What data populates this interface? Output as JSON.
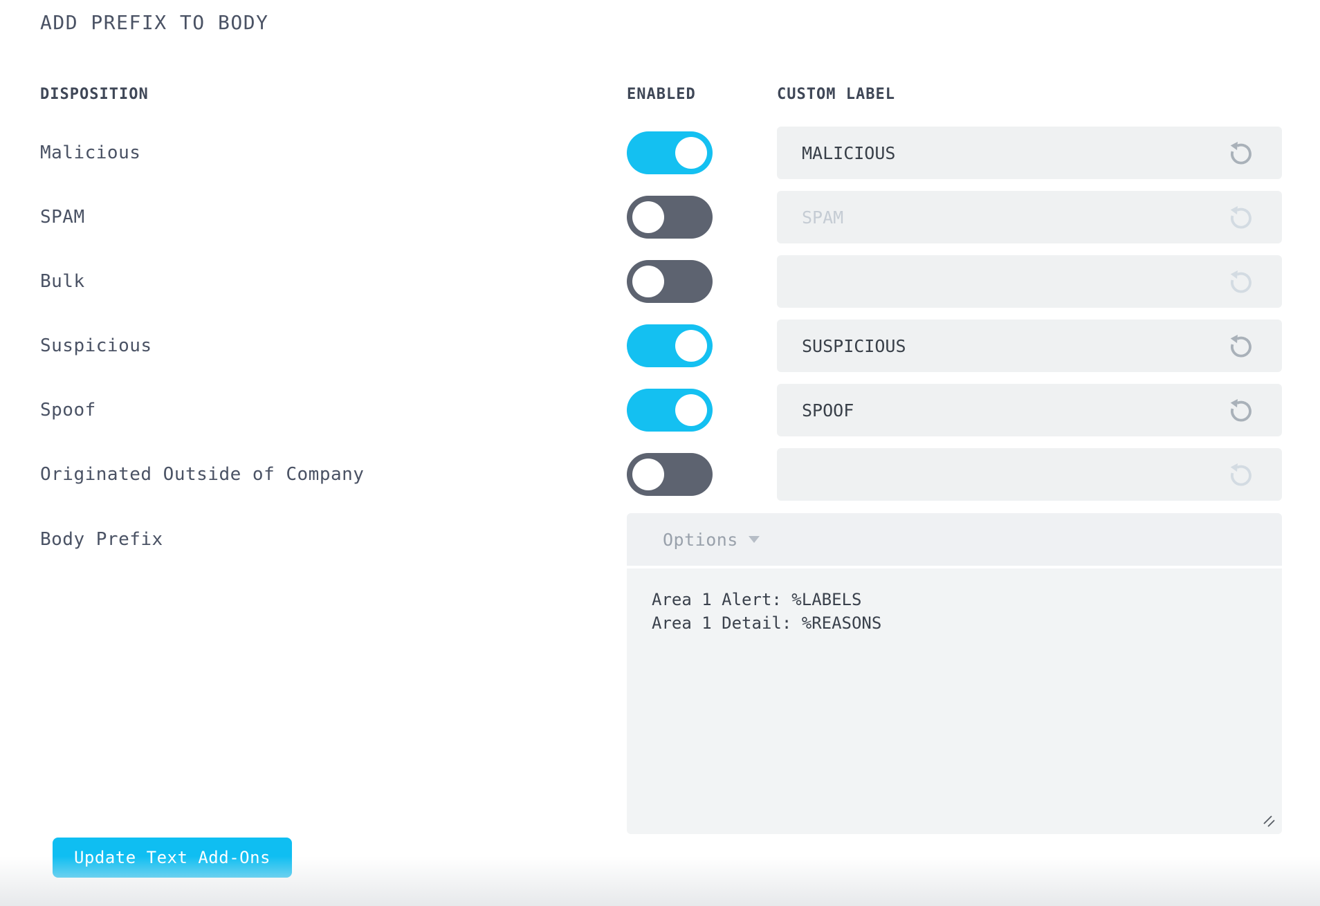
{
  "page": {
    "title": "ADD PREFIX TO BODY"
  },
  "table": {
    "headers": {
      "disposition": "DISPOSITION",
      "enabled": "ENABLED",
      "custom_label": "CUSTOM LABEL"
    },
    "rows": [
      {
        "disposition": "Malicious",
        "enabled": true,
        "custom_label": "MALICIOUS",
        "placeholder": ""
      },
      {
        "disposition": "SPAM",
        "enabled": false,
        "custom_label": "",
        "placeholder": "SPAM"
      },
      {
        "disposition": "Bulk",
        "enabled": false,
        "custom_label": "",
        "placeholder": ""
      },
      {
        "disposition": "Suspicious",
        "enabled": true,
        "custom_label": "SUSPICIOUS",
        "placeholder": ""
      },
      {
        "disposition": "Spoof",
        "enabled": true,
        "custom_label": "SPOOF",
        "placeholder": ""
      },
      {
        "disposition": "Originated Outside of Company",
        "enabled": false,
        "custom_label": "",
        "placeholder": ""
      }
    ]
  },
  "body_prefix": {
    "label": "Body Prefix",
    "options_label": "Options",
    "value": "Area 1 Alert: %LABELS\nArea 1 Detail: %REASONS"
  },
  "actions": {
    "update_button": "Update Text Add-Ons"
  },
  "icons": {
    "reset": "reset-counterclockwise-arrow",
    "caret": "chevron-down-triangle",
    "resize": "diagonal-resize-grip"
  },
  "colors": {
    "accent_cyan": "#14C0F1",
    "button_cyan": "#0FBEF2",
    "toggle_off": "#5D6370",
    "field_bg": "#EFF1F2",
    "text_dark": "#3F4757",
    "label_text": "#4A5264",
    "value_text": "#394049",
    "placeholder_text": "#C5CCD4",
    "reset_icon": "#A9B1B9",
    "reset_icon_disabled": "#D3DBE2",
    "options_text": "#99A1AB",
    "panel_bg": "#F2F4F5",
    "footer_fade": "#E7E9EB"
  }
}
